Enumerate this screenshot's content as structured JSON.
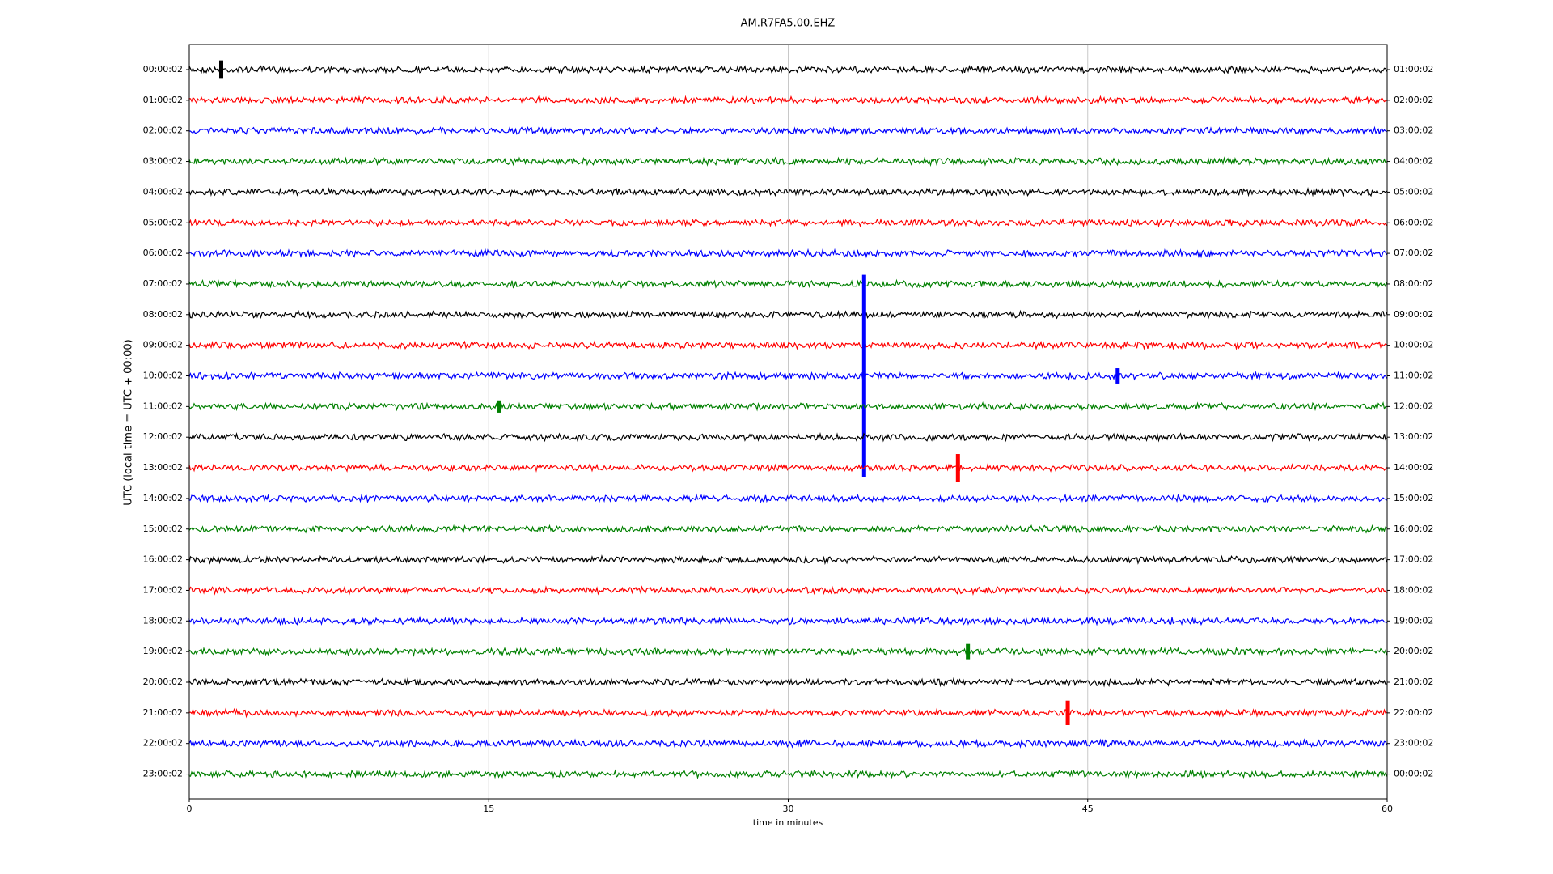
{
  "chart_data": {
    "type": "dayplot",
    "title": "AM.R7FA5.00.EHZ",
    "ylabel": "UTC (local time = UTC + 00:00)",
    "xlabel": "time in minutes",
    "xlim": [
      0,
      60
    ],
    "xticks": [
      0,
      15,
      30,
      45,
      60
    ],
    "grid": true,
    "series": [
      {
        "name": "00:00:02",
        "right_label": "01:00:02",
        "color": "#000000",
        "x": [
          1.6
        ],
        "values": [
          0.3
        ]
      },
      {
        "name": "01:00:02",
        "right_label": "02:00:02",
        "color": "#ff0000",
        "x": [],
        "values": []
      },
      {
        "name": "02:00:02",
        "right_label": "03:00:02",
        "color": "#0000ff",
        "x": [],
        "values": []
      },
      {
        "name": "03:00:02",
        "right_label": "04:00:02",
        "color": "#008000",
        "x": [],
        "values": []
      },
      {
        "name": "04:00:02",
        "right_label": "05:00:02",
        "color": "#000000",
        "x": [],
        "values": []
      },
      {
        "name": "05:00:02",
        "right_label": "06:00:02",
        "color": "#ff0000",
        "x": [],
        "values": []
      },
      {
        "name": "06:00:02",
        "right_label": "07:00:02",
        "color": "#0000ff",
        "x": [],
        "values": []
      },
      {
        "name": "07:00:02",
        "right_label": "08:00:02",
        "color": "#008000",
        "x": [],
        "values": []
      },
      {
        "name": "08:00:02",
        "right_label": "09:00:02",
        "color": "#000000",
        "x": [],
        "values": []
      },
      {
        "name": "09:00:02",
        "right_label": "10:00:02",
        "color": "#ff0000",
        "x": [],
        "values": []
      },
      {
        "name": "10:00:02",
        "right_label": "11:00:02",
        "color": "#0000ff",
        "x": [
          33.8,
          46.5
        ],
        "values": [
          3.3,
          0.25
        ]
      },
      {
        "name": "11:00:02",
        "right_label": "12:00:02",
        "color": "#008000",
        "x": [
          15.5
        ],
        "values": [
          0.2
        ]
      },
      {
        "name": "12:00:02",
        "right_label": "13:00:02",
        "color": "#000000",
        "x": [],
        "values": []
      },
      {
        "name": "13:00:02",
        "right_label": "14:00:02",
        "color": "#ff0000",
        "x": [
          38.5
        ],
        "values": [
          0.45
        ]
      },
      {
        "name": "14:00:02",
        "right_label": "15:00:02",
        "color": "#0000ff",
        "x": [],
        "values": []
      },
      {
        "name": "15:00:02",
        "right_label": "16:00:02",
        "color": "#008000",
        "x": [],
        "values": []
      },
      {
        "name": "16:00:02",
        "right_label": "17:00:02",
        "color": "#000000",
        "x": [],
        "values": []
      },
      {
        "name": "17:00:02",
        "right_label": "18:00:02",
        "color": "#ff0000",
        "x": [],
        "values": []
      },
      {
        "name": "18:00:02",
        "right_label": "19:00:02",
        "color": "#0000ff",
        "x": [],
        "values": []
      },
      {
        "name": "19:00:02",
        "right_label": "20:00:02",
        "color": "#008000",
        "x": [
          39
        ],
        "values": [
          0.25
        ]
      },
      {
        "name": "20:00:02",
        "right_label": "21:00:02",
        "color": "#000000",
        "x": [],
        "values": []
      },
      {
        "name": "21:00:02",
        "right_label": "22:00:02",
        "color": "#ff0000",
        "x": [
          44
        ],
        "values": [
          0.4
        ]
      },
      {
        "name": "22:00:02",
        "right_label": "23:00:02",
        "color": "#0000ff",
        "x": [],
        "values": []
      },
      {
        "name": "23:00:02",
        "right_label": "00:00:02",
        "color": "#008000",
        "x": [],
        "values": []
      }
    ]
  }
}
